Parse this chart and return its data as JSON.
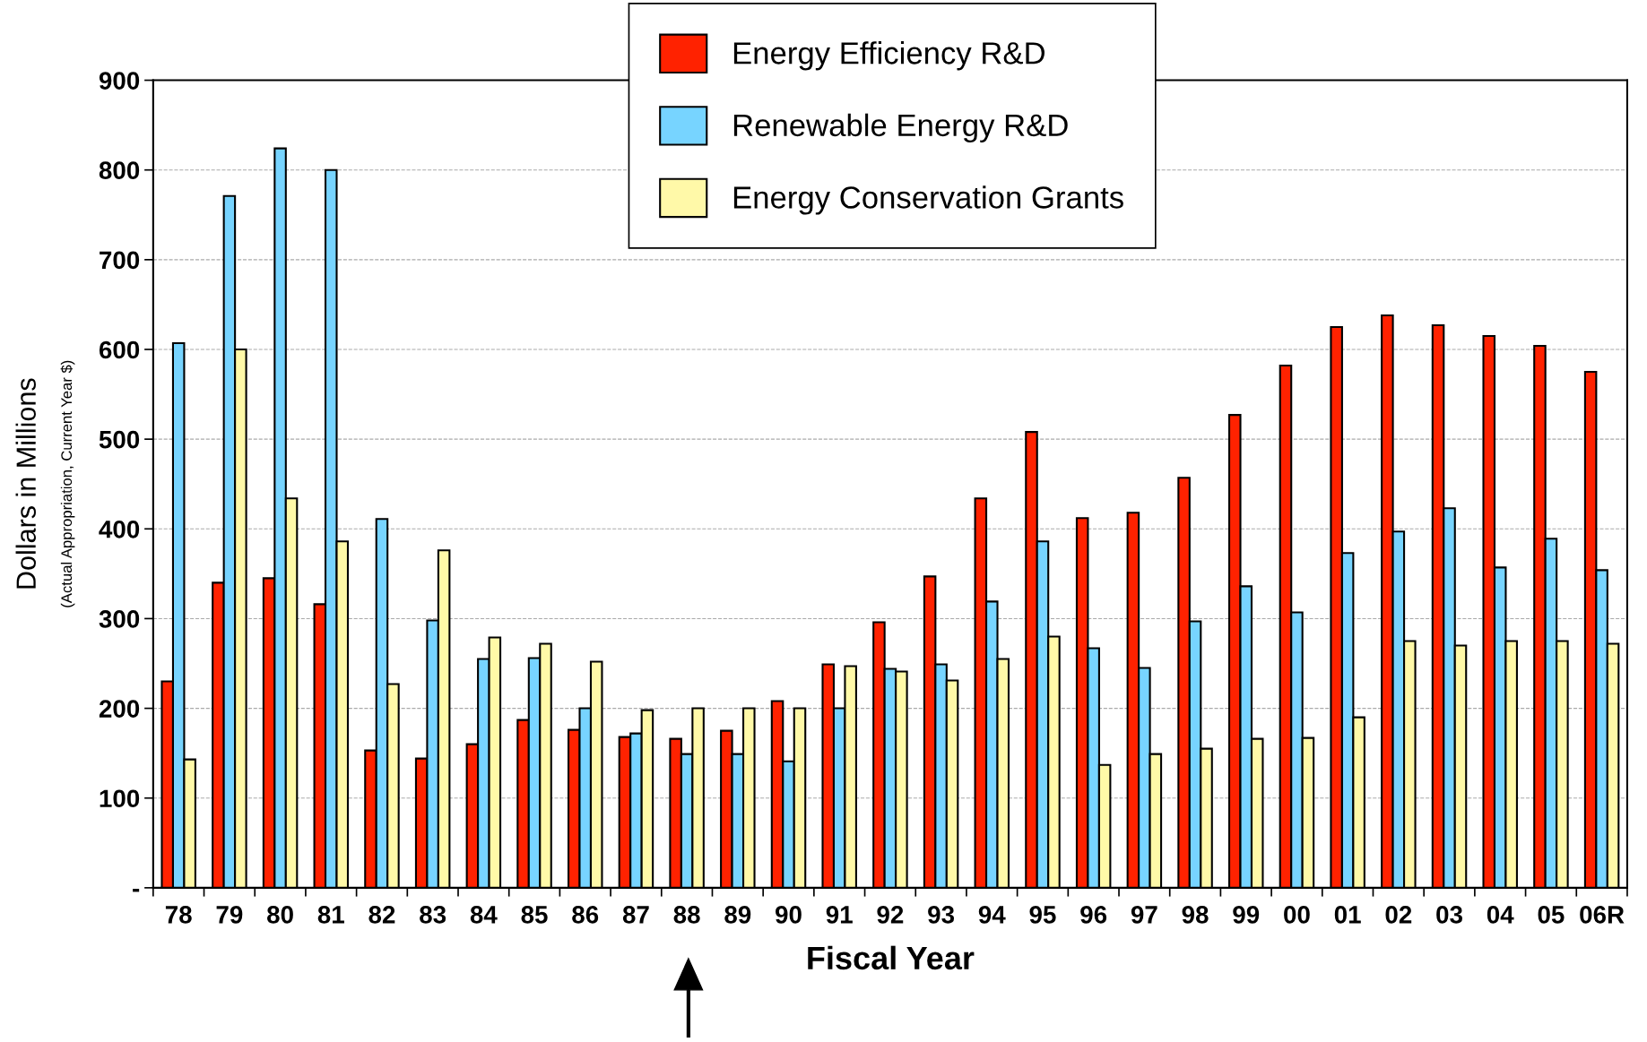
{
  "chart_data": {
    "type": "bar",
    "xlabel": "Fiscal Year",
    "ylabel": "Dollars in Millions",
    "annotations": [
      "(Actual Appropriation, Current Year $)"
    ],
    "categories": [
      "78",
      "79",
      "80",
      "81",
      "82",
      "83",
      "84",
      "85",
      "86",
      "87",
      "88",
      "89",
      "90",
      "91",
      "92",
      "93",
      "94",
      "95",
      "96",
      "97",
      "98",
      "99",
      "00",
      "01",
      "02",
      "03",
      "04",
      "05",
      "06R"
    ],
    "series": [
      {
        "name": "Energy Efficiency R&D",
        "color": "#ff2200",
        "values": [
          230,
          340,
          345,
          316,
          153,
          144,
          160,
          187,
          176,
          168,
          166,
          175,
          208,
          249,
          296,
          347,
          434,
          508,
          412,
          418,
          457,
          527,
          582,
          625,
          638,
          627,
          615,
          604,
          575
        ]
      },
      {
        "name": "Renewable Energy R&D",
        "color": "#77d4ff",
        "values": [
          607,
          771,
          824,
          800,
          411,
          298,
          255,
          256,
          200,
          172,
          149,
          149,
          141,
          200,
          244,
          249,
          319,
          386,
          267,
          245,
          297,
          336,
          307,
          373,
          397,
          423,
          357,
          389,
          354
        ]
      },
      {
        "name": "Energy Conservation Grants",
        "color": "#fff9a8",
        "values": [
          143,
          600,
          434,
          386,
          227,
          376,
          279,
          272,
          252,
          198,
          200,
          200,
          200,
          247,
          241,
          231,
          255,
          280,
          137,
          149,
          155,
          166,
          167,
          190,
          275,
          270,
          275,
          275,
          272
        ]
      }
    ],
    "ylim": [
      0,
      900
    ],
    "yticks": [
      {
        "value": 0,
        "label": "-"
      },
      100,
      200,
      300,
      400,
      500,
      600,
      700,
      800,
      900
    ],
    "grid": "y",
    "legend": "top right"
  }
}
